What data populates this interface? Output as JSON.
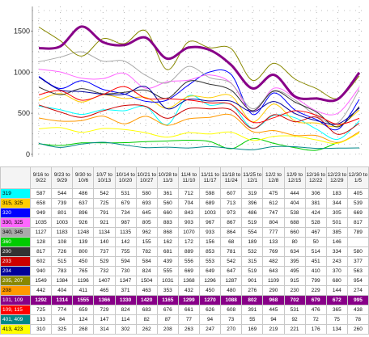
{
  "chart_data": {
    "type": "line",
    "y_ticks": [
      0,
      500,
      1000,
      1500
    ],
    "ylim": [
      -30,
      1800
    ],
    "grid": "dotted",
    "categories": [
      "9/16 to 9/22",
      "9/23 to 9/29",
      "9/30 to 10/6",
      "10/7 to 10/13",
      "10/14 to 10/20",
      "10/21 to 10/27",
      "10/28 to 11/3",
      "11/4 to 11/10",
      "11/11 to 11/17",
      "11/18 to 11/24",
      "11/25 to 12/1",
      "12/2 to 12/8",
      "12/9 to 12/15",
      "12/16 to 12/22",
      "12/23 to 12/29",
      "12/30 to 1/5"
    ],
    "series": [
      {
        "name": "319",
        "color": "#00ffff",
        "values": [
          587,
          544,
          486,
          542,
          531,
          580,
          361,
          712,
          598,
          607,
          319,
          475,
          444,
          306,
          183,
          405
        ]
      },
      {
        "name": "315, 325",
        "color": "#ffcc00",
        "values": [
          658,
          739,
          637,
          725,
          679,
          693,
          560,
          704,
          689,
          713,
          396,
          612,
          404,
          381,
          344,
          539
        ]
      },
      {
        "name": "320",
        "color": "#0000ff",
        "values": [
          949,
          801,
          896,
          791,
          734,
          645,
          660,
          843,
          1003,
          973,
          486,
          747,
          538,
          424,
          305,
          669
        ]
      },
      {
        "name": "330, 325",
        "color": "#ff66ff",
        "values": [
          1035,
          1003,
          926,
          921,
          987,
          805,
          883,
          903,
          967,
          867,
          519,
          804,
          688,
          528,
          501,
          817
        ]
      },
      {
        "name": "340, 345",
        "color": "#aaaaaa",
        "values": [
          1127,
          1183,
          1248,
          1134,
          1135,
          962,
          868,
          1070,
          933,
          864,
          554,
          777,
          660,
          467,
          385,
          789
        ]
      },
      {
        "name": "360",
        "color": "#00cc00",
        "values": [
          128,
          108,
          139,
          140,
          142,
          155,
          162,
          172,
          156,
          68,
          189,
          133,
          80,
          50,
          146,
          null
        ]
      },
      {
        "name": "200",
        "color": "#333333",
        "values": [
          817,
          726,
          800,
          737,
          755,
          782,
          681,
          889,
          853,
          781,
          532,
          769,
          634,
          514,
          334,
          580
        ]
      },
      {
        "name": "203",
        "color": "#cc0000",
        "values": [
          602,
          515,
          450,
          529,
          594,
          584,
          439,
          556,
          553,
          542,
          315,
          482,
          395,
          451,
          243,
          377
        ]
      },
      {
        "name": "204",
        "color": "#000099",
        "values": [
          940,
          783,
          765,
          732,
          730,
          824,
          555,
          669,
          649,
          647,
          519,
          643,
          495,
          410,
          370,
          563
        ]
      },
      {
        "name": "205, 207",
        "color": "#888800",
        "values": [
          1549,
          1384,
          1196,
          1407,
          1347,
          1504,
          1031,
          1368,
          1296,
          1287,
          901,
          1109,
          915,
          799,
          680,
          954
        ]
      },
      {
        "name": "208",
        "color": "#ff9900",
        "values": [
          442,
          404,
          411,
          465,
          371,
          463,
          353,
          432,
          450,
          480,
          276,
          290,
          230,
          229,
          144,
          274
        ]
      },
      {
        "name": "101, 109",
        "color": "#880088",
        "values": [
          1292,
          1314,
          1555,
          1366,
          1330,
          1420,
          1165,
          1299,
          1270,
          1088,
          802,
          968,
          702,
          679,
          672,
          995
        ]
      },
      {
        "name": "109, 115",
        "color": "#ff0000",
        "values": [
          725,
          774,
          659,
          729,
          824,
          683,
          676,
          661,
          626,
          608,
          391,
          445,
          531,
          476,
          365,
          438
        ]
      },
      {
        "name": "401, 409",
        "color": "#008888",
        "values": [
          133,
          84,
          124,
          147,
          114,
          82,
          87,
          77,
          94,
          73,
          55,
          94,
          92,
          72,
          75,
          78
        ]
      },
      {
        "name": "413, 423",
        "color": "#ffff00",
        "values": [
          310,
          325,
          268,
          314,
          302,
          262,
          208,
          263,
          247,
          270,
          169,
          219,
          221,
          176,
          134,
          260
        ]
      }
    ]
  },
  "table": {
    "highlight_series": 11,
    "highlight_color": "#880088"
  }
}
